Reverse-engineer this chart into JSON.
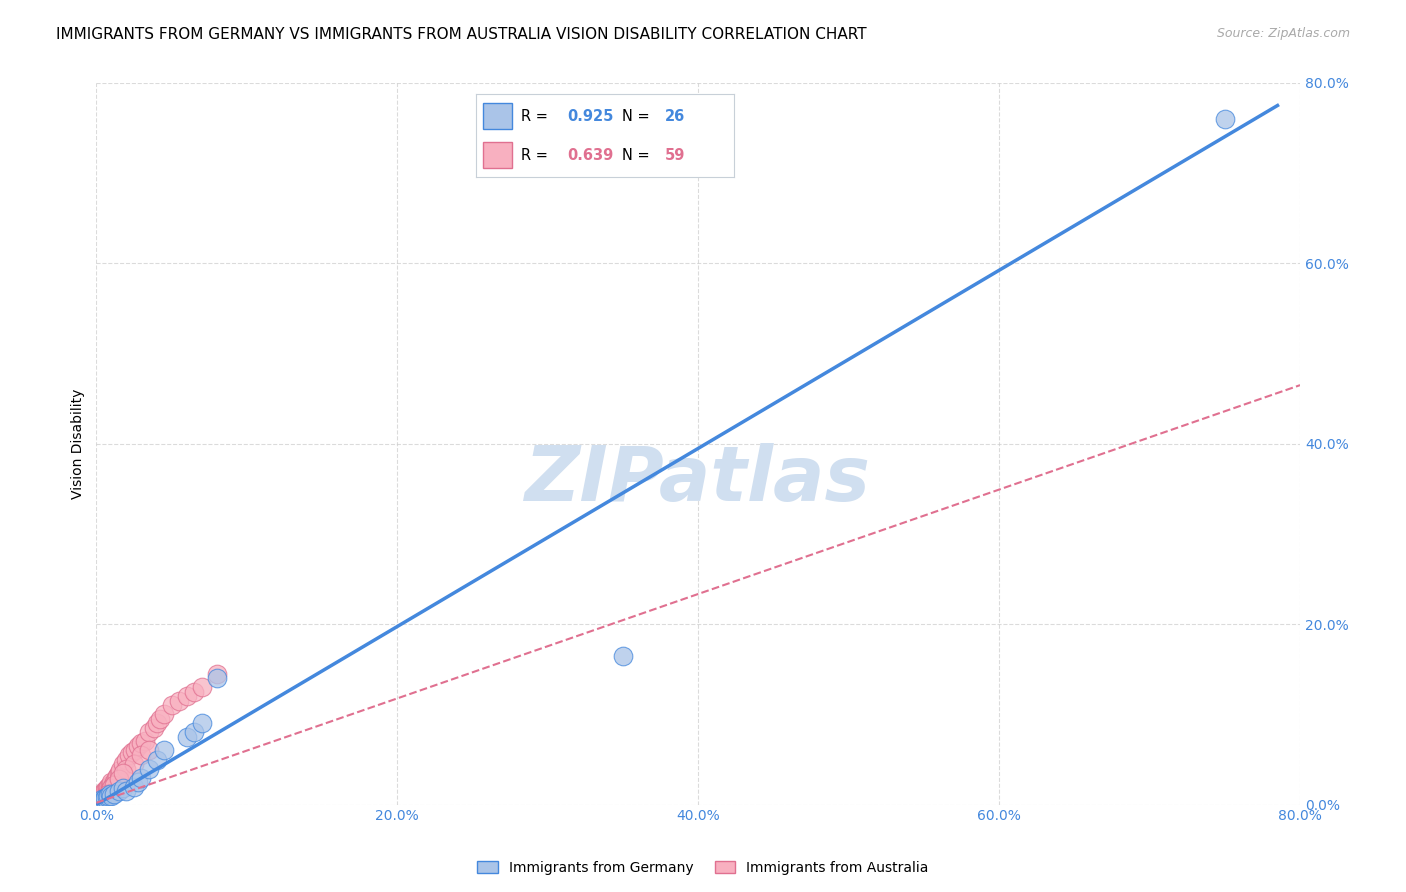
{
  "title": "IMMIGRANTS FROM GERMANY VS IMMIGRANTS FROM AUSTRALIA VISION DISABILITY CORRELATION CHART",
  "source": "Source: ZipAtlas.com",
  "ylabel": "Vision Disability",
  "xlim": [
    0.0,
    0.8
  ],
  "ylim": [
    0.0,
    0.8
  ],
  "xtick_positions": [
    0.0,
    0.2,
    0.4,
    0.6,
    0.8
  ],
  "ytick_positions": [
    0.0,
    0.2,
    0.4,
    0.6,
    0.8
  ],
  "germany_R": 0.925,
  "germany_N": 26,
  "australia_R": 0.639,
  "australia_N": 59,
  "germany_color": "#aac4e8",
  "australia_color": "#f8b0c0",
  "germany_line_color": "#4488dd",
  "australia_line_color": "#e07090",
  "watermark": "ZIPatlas",
  "watermark_color": "#d0dff0",
  "germany_scatter_x": [
    0.001,
    0.002,
    0.003,
    0.004,
    0.005,
    0.006,
    0.007,
    0.008,
    0.009,
    0.01,
    0.012,
    0.015,
    0.018,
    0.02,
    0.025,
    0.028,
    0.03,
    0.035,
    0.04,
    0.045,
    0.06,
    0.065,
    0.07,
    0.08,
    0.35,
    0.75
  ],
  "germany_scatter_y": [
    0.002,
    0.003,
    0.004,
    0.006,
    0.006,
    0.007,
    0.008,
    0.01,
    0.012,
    0.01,
    0.012,
    0.015,
    0.018,
    0.015,
    0.02,
    0.025,
    0.03,
    0.04,
    0.05,
    0.06,
    0.075,
    0.08,
    0.09,
    0.14,
    0.165,
    0.76
  ],
  "australia_scatter_x": [
    0.001,
    0.001,
    0.001,
    0.002,
    0.002,
    0.002,
    0.003,
    0.003,
    0.003,
    0.004,
    0.004,
    0.004,
    0.005,
    0.005,
    0.005,
    0.006,
    0.006,
    0.007,
    0.007,
    0.008,
    0.008,
    0.009,
    0.009,
    0.01,
    0.01,
    0.011,
    0.012,
    0.013,
    0.014,
    0.015,
    0.016,
    0.018,
    0.02,
    0.022,
    0.024,
    0.026,
    0.028,
    0.03,
    0.032,
    0.035,
    0.038,
    0.04,
    0.042,
    0.045,
    0.05,
    0.055,
    0.06,
    0.065,
    0.07,
    0.08,
    0.02,
    0.025,
    0.03,
    0.035,
    0.01,
    0.012,
    0.015,
    0.018,
    0.008
  ],
  "australia_scatter_y": [
    0.003,
    0.004,
    0.005,
    0.005,
    0.006,
    0.008,
    0.006,
    0.008,
    0.01,
    0.008,
    0.01,
    0.012,
    0.01,
    0.012,
    0.015,
    0.012,
    0.015,
    0.015,
    0.018,
    0.015,
    0.02,
    0.018,
    0.022,
    0.02,
    0.025,
    0.022,
    0.025,
    0.03,
    0.032,
    0.035,
    0.038,
    0.045,
    0.05,
    0.055,
    0.058,
    0.06,
    0.065,
    0.068,
    0.07,
    0.08,
    0.085,
    0.09,
    0.095,
    0.1,
    0.11,
    0.115,
    0.12,
    0.125,
    0.13,
    0.145,
    0.04,
    0.045,
    0.055,
    0.06,
    0.018,
    0.022,
    0.028,
    0.035,
    0.012
  ],
  "germany_line_x": [
    0.0,
    0.785
  ],
  "germany_line_y": [
    0.0,
    0.775
  ],
  "australia_line_x": [
    0.0,
    0.8
  ],
  "australia_line_y": [
    0.002,
    0.465
  ],
  "background_color": "#ffffff",
  "grid_color": "#cccccc",
  "title_fontsize": 11,
  "axis_label_fontsize": 10,
  "tick_fontsize": 10,
  "legend_fontsize": 10,
  "source_fontsize": 9,
  "scatter_size": 180
}
